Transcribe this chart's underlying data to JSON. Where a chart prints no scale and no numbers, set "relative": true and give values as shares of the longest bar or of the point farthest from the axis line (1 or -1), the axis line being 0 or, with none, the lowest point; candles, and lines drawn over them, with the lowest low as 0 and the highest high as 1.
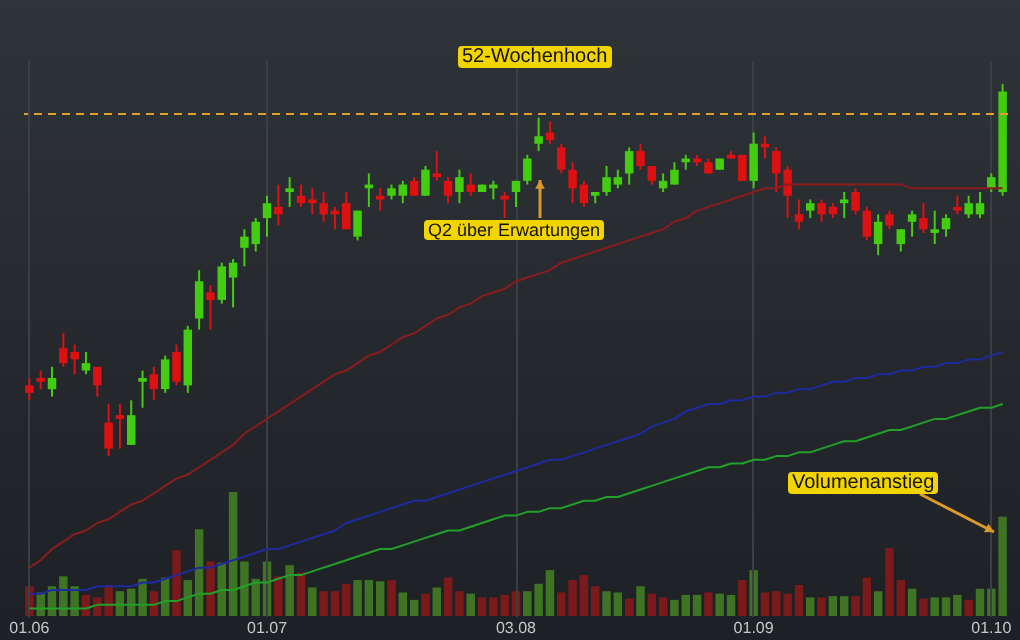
{
  "chart_data": [
    {
      "type": "candlestick",
      "relative": true,
      "grid": "x",
      "categories": [
        "01.06",
        null,
        null,
        null,
        null,
        null,
        null,
        null,
        null,
        null,
        null,
        null,
        null,
        null,
        null,
        null,
        null,
        null,
        null,
        null,
        null,
        "01.07",
        null,
        null,
        null,
        null,
        null,
        null,
        null,
        null,
        null,
        null,
        null,
        null,
        null,
        null,
        null,
        null,
        null,
        null,
        null,
        null,
        null,
        "03.08",
        null,
        null,
        null,
        null,
        null,
        null,
        null,
        null,
        null,
        null,
        null,
        null,
        null,
        null,
        null,
        null,
        null,
        null,
        null,
        null,
        "01.09",
        null,
        null,
        null,
        null,
        null,
        null,
        null,
        null,
        null,
        null,
        null,
        null,
        null,
        null,
        null,
        null,
        null,
        null,
        null,
        null,
        "01.10",
        null
      ],
      "ohlc": [
        [
          0.19,
          0.21,
          0.15,
          0.17
        ],
        [
          0.21,
          0.23,
          0.18,
          0.2
        ],
        [
          0.18,
          0.24,
          0.16,
          0.21
        ],
        [
          0.29,
          0.33,
          0.24,
          0.25
        ],
        [
          0.28,
          0.3,
          0.22,
          0.26
        ],
        [
          0.23,
          0.28,
          0.22,
          0.25
        ],
        [
          0.24,
          0.24,
          0.16,
          0.19
        ],
        [
          0.09,
          0.14,
          0,
          0.02
        ],
        [
          0.11,
          0.14,
          0.02,
          0.1
        ],
        [
          0.03,
          0.15,
          0.03,
          0.11
        ],
        [
          0.2,
          0.23,
          0.13,
          0.21
        ],
        [
          0.22,
          0.24,
          0.15,
          0.18
        ],
        [
          0.18,
          0.27,
          0.17,
          0.26
        ],
        [
          0.28,
          0.3,
          0.19,
          0.2
        ],
        [
          0.19,
          0.35,
          0.17,
          0.34
        ],
        [
          0.37,
          0.5,
          0.34,
          0.47
        ],
        [
          0.44,
          0.46,
          0.34,
          0.42
        ],
        [
          0.42,
          0.52,
          0.41,
          0.51
        ],
        [
          0.48,
          0.53,
          0.4,
          0.52
        ],
        [
          0.56,
          0.61,
          0.51,
          0.59
        ],
        [
          0.57,
          0.64,
          0.55,
          0.63
        ],
        [
          0.64,
          0.7,
          0.59,
          0.68
        ],
        [
          0.67,
          0.73,
          0.62,
          0.65
        ],
        [
          0.71,
          0.75,
          0.67,
          0.72
        ],
        [
          0.7,
          0.73,
          0.67,
          0.68
        ],
        [
          0.69,
          0.72,
          0.65,
          0.68
        ],
        [
          0.68,
          0.71,
          0.63,
          0.65
        ],
        [
          0.66,
          0.67,
          0.61,
          0.65
        ],
        [
          0.68,
          0.71,
          0.61,
          0.61
        ],
        [
          0.59,
          0.66,
          0.58,
          0.66
        ],
        [
          0.72,
          0.76,
          0.67,
          0.73
        ],
        [
          0.7,
          0.72,
          0.66,
          0.69
        ],
        [
          0.7,
          0.73,
          0.69,
          0.72
        ],
        [
          0.7,
          0.74,
          0.68,
          0.73
        ],
        [
          0.74,
          0.75,
          0.7,
          0.7
        ],
        [
          0.7,
          0.78,
          0.7,
          0.77
        ],
        [
          0.76,
          0.82,
          0.74,
          0.75
        ],
        [
          0.74,
          0.75,
          0.68,
          0.7
        ],
        [
          0.71,
          0.77,
          0.68,
          0.75
        ],
        [
          0.73,
          0.76,
          0.7,
          0.71
        ],
        [
          0.71,
          0.73,
          0.71,
          0.73
        ],
        [
          0.72,
          0.74,
          0.69,
          0.73
        ],
        [
          0.7,
          0.71,
          0.64,
          0.69
        ],
        [
          0.71,
          0.74,
          0.67,
          0.74
        ],
        [
          0.74,
          0.81,
          0.73,
          0.8
        ],
        [
          0.84,
          0.91,
          0.82,
          0.86
        ],
        [
          0.87,
          0.9,
          0.84,
          0.85
        ],
        [
          0.83,
          0.84,
          0.76,
          0.77
        ],
        [
          0.77,
          0.79,
          0.68,
          0.72
        ],
        [
          0.73,
          0.74,
          0.67,
          0.68
        ],
        [
          0.7,
          0.71,
          0.68,
          0.71
        ],
        [
          0.71,
          0.78,
          0.7,
          0.75
        ],
        [
          0.73,
          0.77,
          0.72,
          0.75
        ],
        [
          0.76,
          0.83,
          0.73,
          0.82
        ],
        [
          0.82,
          0.84,
          0.77,
          0.78
        ],
        [
          0.78,
          0.78,
          0.73,
          0.74
        ],
        [
          0.72,
          0.76,
          0.71,
          0.74
        ],
        [
          0.73,
          0.79,
          0.73,
          0.77
        ],
        [
          0.79,
          0.81,
          0.77,
          0.8
        ],
        [
          0.8,
          0.81,
          0.78,
          0.79
        ],
        [
          0.79,
          0.8,
          0.76,
          0.76
        ],
        [
          0.77,
          0.8,
          0.77,
          0.8
        ],
        [
          0.81,
          0.82,
          0.8,
          0.8
        ],
        [
          0.81,
          0.81,
          0.74,
          0.74
        ],
        [
          0.74,
          0.87,
          0.72,
          0.84
        ],
        [
          0.84,
          0.86,
          0.8,
          0.83
        ],
        [
          0.82,
          0.83,
          0.71,
          0.76
        ],
        [
          0.77,
          0.78,
          0.64,
          0.7
        ],
        [
          0.65,
          0.69,
          0.61,
          0.63
        ],
        [
          0.66,
          0.69,
          0.64,
          0.68
        ],
        [
          0.68,
          0.69,
          0.63,
          0.65
        ],
        [
          0.67,
          0.68,
          0.64,
          0.65
        ],
        [
          0.68,
          0.71,
          0.64,
          0.69
        ],
        [
          0.71,
          0.72,
          0.65,
          0.66
        ],
        [
          0.66,
          0.67,
          0.58,
          0.59
        ],
        [
          0.57,
          0.65,
          0.54,
          0.63
        ],
        [
          0.65,
          0.66,
          0.61,
          0.62
        ],
        [
          0.57,
          0.61,
          0.55,
          0.61
        ],
        [
          0.63,
          0.66,
          0.59,
          0.65
        ],
        [
          0.64,
          0.68,
          0.6,
          0.61
        ],
        [
          0.6,
          0.66,
          0.57,
          0.61
        ],
        [
          0.61,
          0.65,
          0.59,
          0.64
        ],
        [
          0.67,
          0.7,
          0.65,
          0.66
        ],
        [
          0.65,
          0.7,
          0.64,
          0.68
        ],
        [
          0.65,
          0.71,
          0.64,
          0.68
        ],
        [
          0.72,
          0.76,
          0.71,
          0.75
        ],
        [
          0.71,
          1,
          0.7,
          0.98
        ]
      ],
      "colors": [
        "#dd1111",
        "#dd1111",
        "#44cc11",
        "#dd1111",
        "#dd1111",
        "#44cc11",
        "#dd1111",
        "#dd1111",
        "#dd1111",
        "#44cc11",
        "#44cc11",
        "#dd1111",
        "#44cc11",
        "#dd1111",
        "#44cc11",
        "#44cc11",
        "#dd1111",
        "#44cc11",
        "#44cc11",
        "#44cc11",
        "#44cc11",
        "#44cc11",
        "#dd1111",
        "#44cc11",
        "#dd1111",
        "#dd1111",
        "#dd1111",
        "#dd1111",
        "#dd1111",
        "#44cc11",
        "#44cc11",
        "#dd1111",
        "#44cc11",
        "#44cc11",
        "#dd1111",
        "#44cc11",
        "#dd1111",
        "#dd1111",
        "#44cc11",
        "#dd1111",
        "#44cc11",
        "#44cc11",
        "#dd1111",
        "#44cc11",
        "#44cc11",
        "#44cc11",
        "#dd1111",
        "#dd1111",
        "#dd1111",
        "#dd1111",
        "#44cc11",
        "#44cc11",
        "#44cc11",
        "#44cc11",
        "#dd1111",
        "#dd1111",
        "#44cc11",
        "#44cc11",
        "#44cc11",
        "#dd1111",
        "#dd1111",
        "#44cc11",
        "#dd1111",
        "#dd1111",
        "#44cc11",
        "#dd1111",
        "#dd1111",
        "#dd1111",
        "#dd1111",
        "#44cc11",
        "#dd1111",
        "#dd1111",
        "#44cc11",
        "#dd1111",
        "#dd1111",
        "#44cc11",
        "#dd1111",
        "#44cc11",
        "#44cc11",
        "#dd1111",
        "#44cc11",
        "#44cc11",
        "#dd1111",
        "#44cc11",
        "#44cc11",
        "#44cc11",
        "#44cc11"
      ],
      "series": [
        {
          "type": "line",
          "color": "#8a1c1c",
          "values": [
            -0.3,
            -0.28,
            -0.25,
            -0.23,
            -0.21,
            -0.2,
            -0.18,
            -0.17,
            -0.15,
            -0.13,
            -0.12,
            -0.1,
            -0.08,
            -0.06,
            -0.05,
            -0.03,
            -0.01,
            0.01,
            0.03,
            0.06,
            0.08,
            0.1,
            0.12,
            0.14,
            0.16,
            0.18,
            0.2,
            0.22,
            0.23,
            0.25,
            0.27,
            0.28,
            0.3,
            0.32,
            0.33,
            0.35,
            0.37,
            0.38,
            0.4,
            0.41,
            0.43,
            0.44,
            0.45,
            0.47,
            0.48,
            0.49,
            0.5,
            0.52,
            0.53,
            0.54,
            0.55,
            0.56,
            0.57,
            0.58,
            0.59,
            0.6,
            0.61,
            0.63,
            0.64,
            0.66,
            0.67,
            0.68,
            0.69,
            0.7,
            0.71,
            0.72,
            0.72,
            0.73,
            0.73,
            0.73,
            0.73,
            0.73,
            0.73,
            0.73,
            0.73,
            0.73,
            0.73,
            0.73,
            0.72,
            0.72,
            0.72,
            0.72,
            0.72,
            0.72,
            0.72,
            0.72,
            0.72
          ]
        },
        {
          "type": "line",
          "color": "#1e2aa0",
          "values": [
            -0.37,
            -0.37,
            -0.36,
            -0.36,
            -0.36,
            -0.36,
            -0.35,
            -0.35,
            -0.35,
            -0.35,
            -0.34,
            -0.34,
            -0.33,
            -0.32,
            -0.31,
            -0.3,
            -0.3,
            -0.29,
            -0.28,
            -0.27,
            -0.26,
            -0.25,
            -0.25,
            -0.24,
            -0.23,
            -0.22,
            -0.21,
            -0.2,
            -0.18,
            -0.17,
            -0.16,
            -0.15,
            -0.14,
            -0.13,
            -0.12,
            -0.12,
            -0.11,
            -0.1,
            -0.09,
            -0.08,
            -0.07,
            -0.06,
            -0.05,
            -0.04,
            -0.03,
            -0.02,
            -0.01,
            -0.01,
            0,
            0.01,
            0.02,
            0.03,
            0.04,
            0.05,
            0.06,
            0.08,
            0.09,
            0.1,
            0.12,
            0.13,
            0.14,
            0.14,
            0.15,
            0.15,
            0.16,
            0.16,
            0.17,
            0.17,
            0.18,
            0.18,
            0.19,
            0.2,
            0.2,
            0.21,
            0.21,
            0.22,
            0.22,
            0.23,
            0.23,
            0.24,
            0.24,
            0.25,
            0.25,
            0.26,
            0.26,
            0.27,
            0.28
          ]
        },
        {
          "type": "line",
          "color": "#22a02a",
          "values": [
            -0.41,
            -0.41,
            -0.41,
            -0.41,
            -0.41,
            -0.41,
            -0.4,
            -0.4,
            -0.4,
            -0.4,
            -0.4,
            -0.4,
            -0.39,
            -0.39,
            -0.38,
            -0.37,
            -0.37,
            -0.36,
            -0.36,
            -0.35,
            -0.34,
            -0.34,
            -0.33,
            -0.32,
            -0.32,
            -0.31,
            -0.3,
            -0.29,
            -0.28,
            -0.27,
            -0.26,
            -0.25,
            -0.25,
            -0.24,
            -0.23,
            -0.22,
            -0.21,
            -0.2,
            -0.2,
            -0.19,
            -0.18,
            -0.17,
            -0.16,
            -0.16,
            -0.15,
            -0.15,
            -0.14,
            -0.14,
            -0.13,
            -0.12,
            -0.12,
            -0.11,
            -0.11,
            -0.1,
            -0.09,
            -0.08,
            -0.07,
            -0.06,
            -0.05,
            -0.04,
            -0.03,
            -0.03,
            -0.02,
            -0.02,
            -0.01,
            -0.01,
            0,
            0,
            0.01,
            0.01,
            0.02,
            0.03,
            0.04,
            0.04,
            0.05,
            0.06,
            0.07,
            0.07,
            0.08,
            0.09,
            0.1,
            0.1,
            0.11,
            0.12,
            0.13,
            0.13,
            0.14
          ]
        }
      ],
      "ref_lines": [
        {
          "axis": "y",
          "value": 0.92,
          "label": "52-Wochenhoch",
          "color": "#e0a030",
          "line_style": "dashed"
        }
      ],
      "annotations": [
        "Q2 über Erwartungen"
      ]
    },
    {
      "type": "bar",
      "relative": true,
      "tick_labels": false,
      "categories": [
        "01.06",
        null,
        null,
        null,
        null,
        null,
        null,
        null,
        null,
        null,
        null,
        null,
        null,
        null,
        null,
        null,
        null,
        null,
        null,
        null,
        null,
        "01.07",
        null,
        null,
        null,
        null,
        null,
        null,
        null,
        null,
        null,
        null,
        null,
        null,
        null,
        null,
        null,
        null,
        null,
        null,
        null,
        null,
        null,
        "03.08",
        null,
        null,
        null,
        null,
        null,
        null,
        null,
        null,
        null,
        null,
        null,
        null,
        null,
        null,
        null,
        null,
        null,
        null,
        null,
        null,
        "01.09",
        null,
        null,
        null,
        null,
        null,
        null,
        null,
        null,
        null,
        null,
        null,
        null,
        null,
        null,
        null,
        null,
        null,
        null,
        null,
        null,
        "01.10",
        null
      ],
      "values": [
        0.24,
        0.19,
        0.24,
        0.32,
        0.24,
        0.17,
        0.15,
        0.25,
        0.2,
        0.22,
        0.3,
        0.2,
        0.31,
        0.53,
        0.29,
        0.7,
        0.44,
        0.43,
        1,
        0.44,
        0.3,
        0.44,
        0.32,
        0.41,
        0.35,
        0.23,
        0.2,
        0.2,
        0.26,
        0.29,
        0.29,
        0.28,
        0.29,
        0.19,
        0.13,
        0.18,
        0.23,
        0.31,
        0.2,
        0.18,
        0.15,
        0.15,
        0.17,
        0.2,
        0.2,
        0.26,
        0.37,
        0.19,
        0.29,
        0.33,
        0.24,
        0.2,
        0.19,
        0.14,
        0.24,
        0.18,
        0.15,
        0.13,
        0.17,
        0.17,
        0.19,
        0.18,
        0.17,
        0.29,
        0.37,
        0.19,
        0.2,
        0.18,
        0.25,
        0.15,
        0.15,
        0.16,
        0.16,
        0.16,
        0.31,
        0.2,
        0.55,
        0.29,
        0.22,
        0.14,
        0.15,
        0.15,
        0.17,
        0.13,
        0.22,
        0.22,
        0.8
      ],
      "colors": [
        "#7a1a1a",
        "#3f7424",
        "#3f7424",
        "#3f7424",
        "#3f7424",
        "#7a1a1a",
        "#7a1a1a",
        "#7a1a1a",
        "#3f7424",
        "#3f7424",
        "#3f7424",
        "#7a1a1a",
        "#3f7424",
        "#7a1a1a",
        "#3f7424",
        "#3f7424",
        "#7a1a1a",
        "#3f7424",
        "#3f7424",
        "#3f7424",
        "#3f7424",
        "#3f7424",
        "#7a1a1a",
        "#3f7424",
        "#7a1a1a",
        "#3f7424",
        "#7a1a1a",
        "#7a1a1a",
        "#7a1a1a",
        "#3f7424",
        "#3f7424",
        "#3f7424",
        "#7a1a1a",
        "#3f7424",
        "#3f7424",
        "#7a1a1a",
        "#3f7424",
        "#7a1a1a",
        "#7a1a1a",
        "#3f7424",
        "#7a1a1a",
        "#7a1a1a",
        "#7a1a1a",
        "#7a1a1a",
        "#3f7424",
        "#3f7424",
        "#3f7424",
        "#7a1a1a",
        "#7a1a1a",
        "#7a1a1a",
        "#7a1a1a",
        "#3f7424",
        "#3f7424",
        "#7a1a1a",
        "#3f7424",
        "#7a1a1a",
        "#7a1a1a",
        "#3f7424",
        "#3f7424",
        "#3f7424",
        "#7a1a1a",
        "#3f7424",
        "#3f7424",
        "#7a1a1a",
        "#3f7424",
        "#7a1a1a",
        "#7a1a1a",
        "#7a1a1a",
        "#7a1a1a",
        "#3f7424",
        "#7a1a1a",
        "#3f7424",
        "#3f7424",
        "#7a1a1a",
        "#7a1a1a",
        "#3f7424",
        "#7a1a1a",
        "#7a1a1a",
        "#3f7424",
        "#7a1a1a",
        "#3f7424",
        "#3f7424",
        "#3f7424",
        "#7a1a1a",
        "#3f7424",
        "#3f7424",
        "#3f7424"
      ],
      "annotations": [
        "Volumenanstieg"
      ]
    }
  ]
}
